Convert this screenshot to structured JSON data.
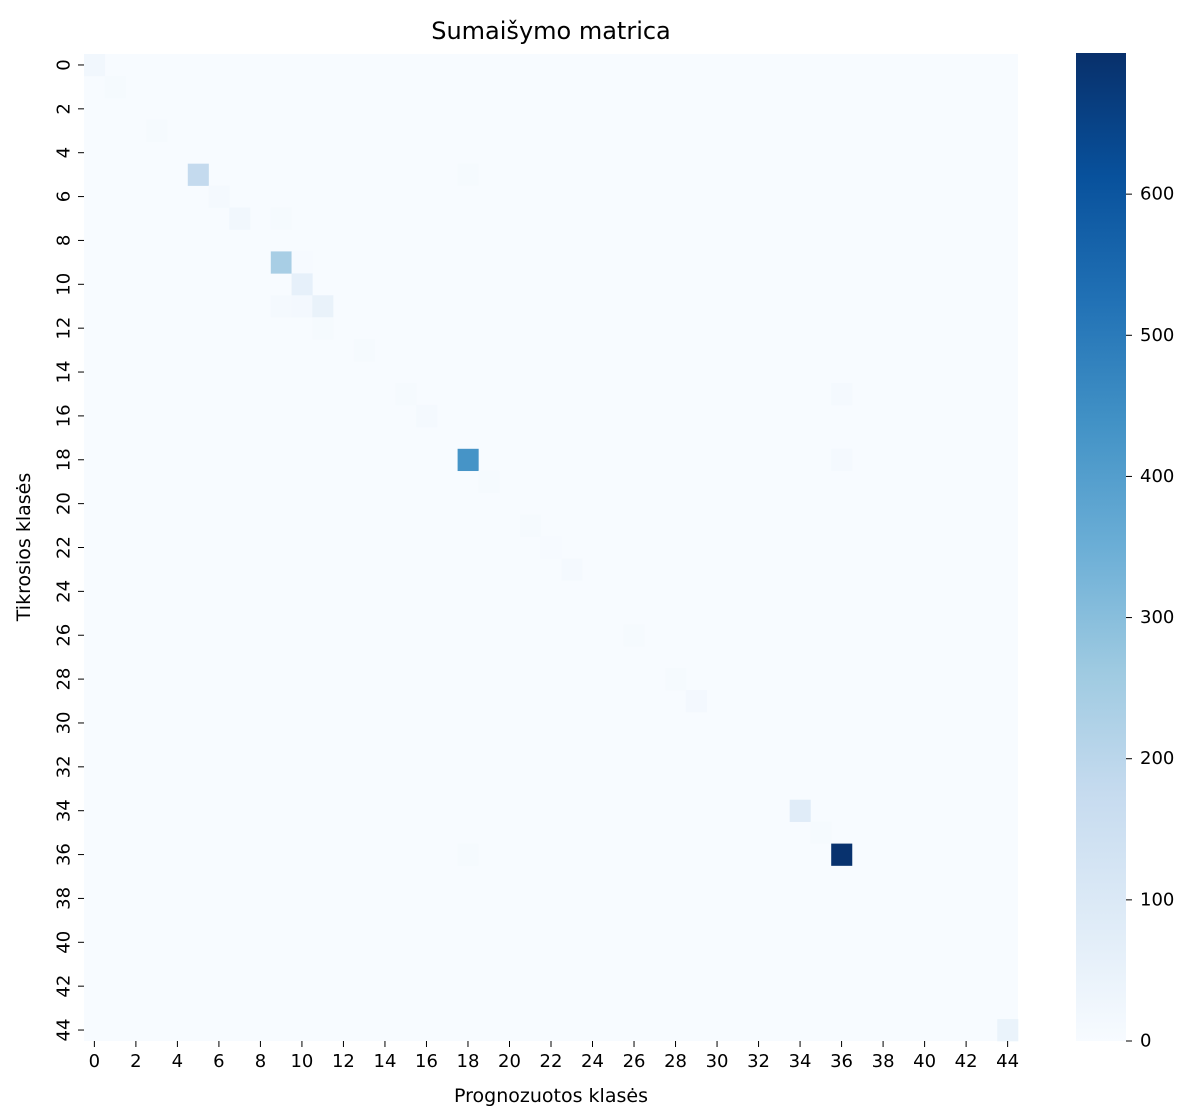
{
  "chart_data": {
    "type": "heatmap",
    "title": "Sumaišymo matrica",
    "xlabel": "Prognozuotos klasės",
    "ylabel": "Tikrosios klasės",
    "n_classes": 45,
    "x_tick_labels": [
      "0",
      "2",
      "4",
      "6",
      "8",
      "10",
      "12",
      "14",
      "16",
      "18",
      "20",
      "22",
      "24",
      "26",
      "28",
      "30",
      "32",
      "34",
      "36",
      "38",
      "40",
      "42",
      "44"
    ],
    "y_tick_labels": [
      "0",
      "2",
      "4",
      "6",
      "8",
      "10",
      "12",
      "14",
      "16",
      "18",
      "20",
      "22",
      "24",
      "26",
      "28",
      "30",
      "32",
      "34",
      "36",
      "38",
      "40",
      "42",
      "44"
    ],
    "colorbar": {
      "colormap": "Blues",
      "vmin": 0,
      "vmax": 700,
      "ticks": [
        0,
        100,
        200,
        300,
        400,
        500,
        600
      ],
      "tick_labels": [
        "0",
        "100",
        "200",
        "300",
        "400",
        "500",
        "600"
      ]
    },
    "cells": [
      {
        "row": 0,
        "col": 0,
        "value": 20
      },
      {
        "row": 1,
        "col": 1,
        "value": 6
      },
      {
        "row": 3,
        "col": 3,
        "value": 8
      },
      {
        "row": 5,
        "col": 5,
        "value": 180
      },
      {
        "row": 5,
        "col": 18,
        "value": 8
      },
      {
        "row": 6,
        "col": 6,
        "value": 10
      },
      {
        "row": 7,
        "col": 7,
        "value": 20
      },
      {
        "row": 7,
        "col": 9,
        "value": 8
      },
      {
        "row": 9,
        "col": 9,
        "value": 240
      },
      {
        "row": 9,
        "col": 10,
        "value": 5
      },
      {
        "row": 10,
        "col": 10,
        "value": 60
      },
      {
        "row": 11,
        "col": 9,
        "value": 12
      },
      {
        "row": 11,
        "col": 10,
        "value": 15
      },
      {
        "row": 11,
        "col": 11,
        "value": 50
      },
      {
        "row": 12,
        "col": 11,
        "value": 6
      },
      {
        "row": 13,
        "col": 13,
        "value": 8
      },
      {
        "row": 15,
        "col": 15,
        "value": 6
      },
      {
        "row": 15,
        "col": 36,
        "value": 12
      },
      {
        "row": 16,
        "col": 16,
        "value": 12
      },
      {
        "row": 18,
        "col": 18,
        "value": 430
      },
      {
        "row": 18,
        "col": 36,
        "value": 10
      },
      {
        "row": 19,
        "col": 19,
        "value": 8
      },
      {
        "row": 21,
        "col": 21,
        "value": 6
      },
      {
        "row": 22,
        "col": 22,
        "value": 5
      },
      {
        "row": 23,
        "col": 23,
        "value": 10
      },
      {
        "row": 26,
        "col": 26,
        "value": 8
      },
      {
        "row": 28,
        "col": 28,
        "value": 6
      },
      {
        "row": 29,
        "col": 29,
        "value": 14
      },
      {
        "row": 34,
        "col": 34,
        "value": 80
      },
      {
        "row": 35,
        "col": 35,
        "value": 6
      },
      {
        "row": 36,
        "col": 18,
        "value": 6
      },
      {
        "row": 36,
        "col": 36,
        "value": 695
      },
      {
        "row": 44,
        "col": 44,
        "value": 45
      }
    ]
  }
}
